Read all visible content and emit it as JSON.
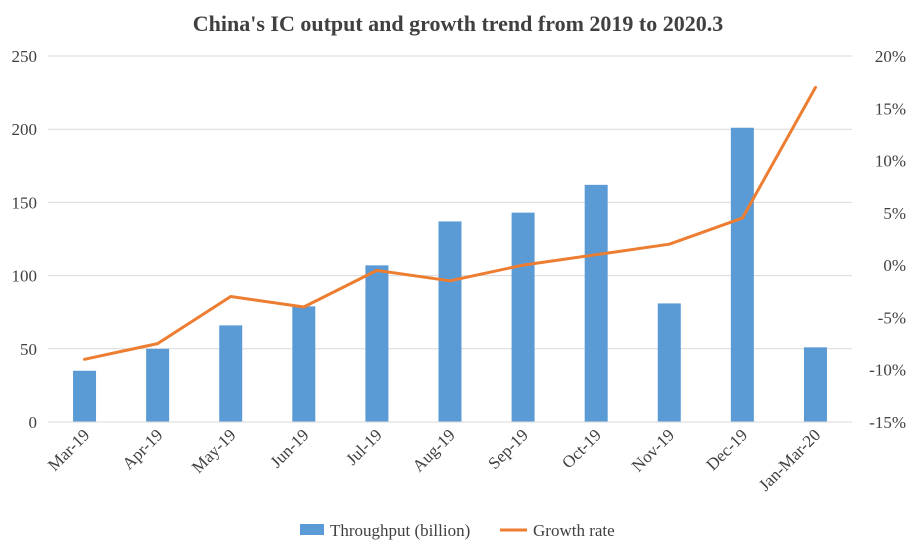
{
  "chart_data": {
    "type": "bar",
    "title": "China's IC output and growth trend from 2019 to 2020.3",
    "categories": [
      "Mar-19",
      "Apr-19",
      "May-19",
      "Jun-19",
      "Jul-19",
      "Aug-19",
      "Sep-19",
      "Oct-19",
      "Nov-19",
      "Dec-19",
      "Jan-Mar-20"
    ],
    "series": [
      {
        "name": "Throughput (billion)",
        "type": "bar",
        "axis": "left",
        "color": "#5b9bd5",
        "values": [
          35,
          50,
          66,
          79,
          107,
          137,
          143,
          162,
          81,
          201,
          51
        ]
      },
      {
        "name": "Growth rate",
        "type": "line",
        "axis": "right",
        "color": "#ed7d31",
        "values": [
          -9,
          -7.5,
          -3,
          -4,
          -0.5,
          -1.5,
          0,
          1,
          2,
          4.5,
          17
        ]
      }
    ],
    "y_left": {
      "range": [
        0,
        250
      ],
      "ticks": [
        0,
        50,
        100,
        150,
        200,
        250
      ],
      "tick_labels": [
        "0",
        "50",
        "100",
        "150",
        "200",
        "250"
      ]
    },
    "y_right": {
      "range": [
        -15,
        20
      ],
      "ticks": [
        -15,
        -10,
        -5,
        0,
        5,
        10,
        15,
        20
      ],
      "tick_labels": [
        "-15%",
        "-10%",
        "-5%",
        "0%",
        "5%",
        "10%",
        "15%",
        "20%"
      ]
    },
    "grid": true,
    "legend_position": "bottom"
  }
}
